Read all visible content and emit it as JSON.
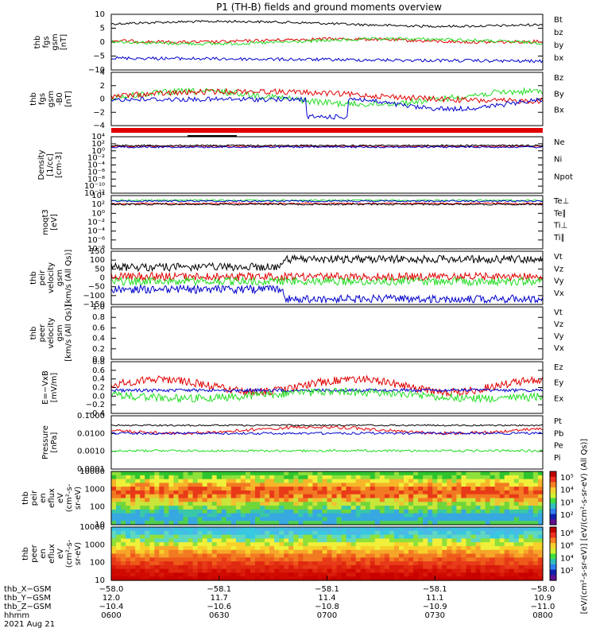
{
  "title": "P1 (TH-B) fields and ground moments overview",
  "colors": {
    "black": "#000000",
    "red": "#e00000",
    "green": "#22dd22",
    "blue": "#0000cc"
  },
  "panels": [
    {
      "id": "fgs",
      "ylabel": [
        "thb",
        "fgs",
        "gsm",
        "[nT]"
      ],
      "yticks": [
        "10",
        "5",
        "0",
        "−5",
        "−10"
      ],
      "legend": [
        {
          "name": "Bt",
          "color": "black"
        },
        {
          "name": "bz",
          "color": "red"
        },
        {
          "name": "by",
          "color": "green"
        },
        {
          "name": "bx",
          "color": "blue"
        }
      ]
    },
    {
      "id": "fgs_hp",
      "ylabel": [
        "thb",
        "fgs",
        "gsm",
        "-B0",
        "[nT]"
      ],
      "yticks": [
        "4",
        "2",
        "0",
        "−2",
        "−4"
      ],
      "legend": [
        {
          "name": "Bz",
          "color": "red"
        },
        {
          "name": "By",
          "color": "green"
        },
        {
          "name": "Bx",
          "color": "blue"
        }
      ]
    },
    {
      "id": "density",
      "ylabel": [
        "Density",
        "[1/cc]",
        "[cm-3]"
      ],
      "yticks": [
        "10⁴",
        "10²",
        "10⁰",
        "10⁻²",
        "10⁻⁴",
        "10⁻⁶",
        "10⁻⁸",
        "10⁻¹⁰",
        "10⁻¹²"
      ],
      "legend": [
        {
          "name": "Ne",
          "color": "red"
        },
        {
          "name": "Ni",
          "color": "black"
        },
        {
          "name": "Npot",
          "color": "blue"
        }
      ]
    },
    {
      "id": "temp",
      "ylabel": [
        "moqt3",
        "[eV]"
      ],
      "yticks": [
        "10⁴",
        "10²",
        "10⁰",
        "10⁻²",
        "10⁻⁴",
        "10⁻⁶",
        "10⁻⁸"
      ],
      "legend": [
        {
          "name": "Te⊥",
          "color": "red"
        },
        {
          "name": "Te∥",
          "color": "black"
        },
        {
          "name": "Ti⊥",
          "color": "blue"
        },
        {
          "name": "Ti∥",
          "color": "green"
        }
      ]
    },
    {
      "id": "peir_vel",
      "ylabel": [
        "thb",
        "peir",
        "velocity",
        "gsm",
        "[km/s (All Qs)]"
      ],
      "yticks": [
        "150",
        "100",
        "50",
        "0",
        "−50",
        "−100",
        "−150"
      ],
      "legend": [
        {
          "name": "Vt",
          "color": "black"
        },
        {
          "name": "Vz",
          "color": "red"
        },
        {
          "name": "Vy",
          "color": "green"
        },
        {
          "name": "Vx",
          "color": "blue"
        }
      ]
    },
    {
      "id": "peer_vel",
      "ylabel": [
        "thb",
        "peer",
        "velocity",
        "gsm",
        "[km/s (All Qs)]"
      ],
      "yticks": [
        "1.0",
        "0.8",
        "0.6",
        "0.4",
        "0.2",
        "0.0"
      ],
      "legend": [
        {
          "name": "Vt",
          "color": "black"
        },
        {
          "name": "Vz",
          "color": "red"
        },
        {
          "name": "Vy",
          "color": "green"
        },
        {
          "name": "Vx",
          "color": "blue"
        }
      ]
    },
    {
      "id": "efield",
      "ylabel": [
        "E=−VxB",
        "[mV/m]"
      ],
      "yticks": [
        "0.8",
        "0.6",
        "0.4",
        "0.2",
        "0.0",
        "−0.2",
        "−0.4"
      ],
      "legend": [
        {
          "name": "Ez",
          "color": "red"
        },
        {
          "name": "Ey",
          "color": "green"
        },
        {
          "name": "Ex",
          "color": "blue"
        }
      ]
    },
    {
      "id": "pressure",
      "ylabel": [
        "Pressure",
        "[nPa]"
      ],
      "yticks": [
        "0.1000",
        "0.0100",
        "0.0010",
        "0.0001"
      ],
      "legend": [
        {
          "name": "Pt",
          "color": "black"
        },
        {
          "name": "Pb",
          "color": "red"
        },
        {
          "name": "Pe",
          "color": "green"
        },
        {
          "name": "Pi",
          "color": "blue"
        }
      ]
    },
    {
      "id": "peir_spec",
      "ylabel": [
        "thb",
        "peir",
        "en",
        "eflux",
        "eV",
        "(cm²-s-",
        "sr-eV)"
      ],
      "yticks": [
        "10000",
        "1000",
        "100",
        "10"
      ],
      "legend": []
    },
    {
      "id": "peer_spec",
      "ylabel": [
        "thb",
        "peer",
        "en",
        "eflux",
        "eV",
        "(cm²-s-",
        "sr-eV)"
      ],
      "yticks": [
        "10000",
        "1000",
        "100",
        "10"
      ],
      "legend": []
    }
  ],
  "colorbar": {
    "upper_ticks": [
      "10⁵",
      "10⁴",
      "10³",
      "10²"
    ],
    "lower_ticks": [
      "10⁸",
      "10⁶",
      "10⁴",
      "10²"
    ],
    "label": "[eV/(cm²-s-sr-eV)] [eV/(cm²-s-sr-eV) (All Qs)]"
  },
  "xaxis": {
    "rows": [
      {
        "name": "thb_X−GSM",
        "values": [
          "−58.0",
          "−58.1",
          "−58.1",
          "−58.1",
          "−58.0"
        ]
      },
      {
        "name": "thb_Y−GSM",
        "values": [
          "12.0",
          "11.7",
          "11.4",
          "11.1",
          "10.9"
        ]
      },
      {
        "name": "thb_Z−GSM",
        "values": [
          "−10.4",
          "−10.6",
          "−10.8",
          "−10.9",
          "−11.0"
        ]
      },
      {
        "name": "hhmm",
        "values": [
          "0600",
          "0630",
          "0700",
          "0730",
          "0800"
        ]
      }
    ],
    "date": "2021 Aug 21"
  }
}
